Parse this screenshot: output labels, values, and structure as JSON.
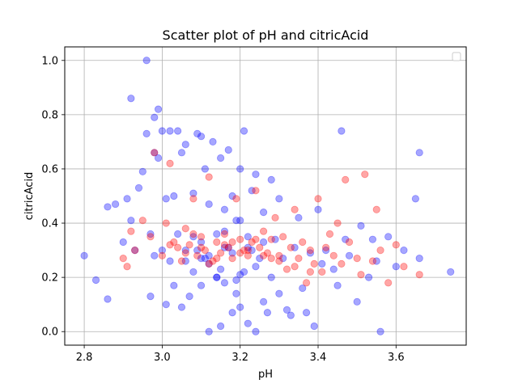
{
  "chart_data": {
    "type": "scatter",
    "title": "Scatter plot of pH and citricAcid",
    "xlabel": "pH",
    "ylabel": "citricAcid",
    "xlim": [
      2.75,
      3.78
    ],
    "ylim": [
      -0.05,
      1.05
    ],
    "x_ticks": [
      2.8,
      3.0,
      3.2,
      3.4,
      3.6
    ],
    "x_tick_labels": [
      "2.8",
      "3.0",
      "3.2",
      "3.4",
      "3.6"
    ],
    "y_ticks": [
      0.0,
      0.2,
      0.4,
      0.6,
      0.8,
      1.0
    ],
    "y_tick_labels": [
      "0.0",
      "0.2",
      "0.4",
      "0.6",
      "0.8",
      "1.0"
    ],
    "grid": true,
    "legend": {
      "placement": "top-right",
      "entries": []
    },
    "colors": {
      "series_a": "#0000ff",
      "series_b": "#ff0000"
    },
    "series": [
      {
        "color": "#0000ff",
        "alpha": 0.35,
        "x": [
          2.8,
          2.83,
          2.86,
          2.86,
          2.88,
          2.9,
          2.91,
          2.92,
          2.92,
          2.93,
          2.94,
          2.95,
          2.96,
          2.96,
          2.97,
          2.97,
          2.98,
          2.98,
          2.98,
          2.99,
          2.99,
          3.0,
          3.0,
          3.01,
          3.01,
          3.02,
          3.03,
          3.03,
          3.04,
          3.05,
          3.05,
          3.06,
          3.06,
          3.07,
          3.08,
          3.08,
          3.09,
          3.09,
          3.1,
          3.1,
          3.11,
          3.11,
          3.12,
          3.12,
          3.13,
          3.14,
          3.14,
          3.15,
          3.15,
          3.16,
          3.16,
          3.17,
          3.17,
          3.18,
          3.18,
          3.19,
          3.19,
          3.2,
          3.2,
          3.21,
          3.21,
          3.22,
          3.22,
          3.23,
          3.24,
          3.24,
          3.25,
          3.26,
          3.26,
          3.27,
          3.28,
          3.28,
          3.29,
          3.3,
          3.3,
          3.31,
          3.32,
          3.33,
          3.34,
          3.35,
          3.36,
          3.37,
          3.38,
          3.39,
          3.4,
          3.41,
          3.42,
          3.44,
          3.45,
          3.46,
          3.47,
          3.48,
          3.5,
          3.51,
          3.53,
          3.54,
          3.55,
          3.56,
          3.58,
          3.6,
          3.62,
          3.65,
          3.66,
          3.66,
          3.74,
          3.02,
          3.06,
          3.1,
          3.12,
          3.14,
          3.16,
          3.18,
          3.2,
          3.22,
          3.24,
          3.26,
          3.08,
          3.12,
          3.16,
          3.2,
          3.04,
          3.1,
          3.15,
          3.19,
          3.23
        ],
        "y": [
          0.28,
          0.19,
          0.12,
          0.46,
          0.47,
          0.33,
          0.49,
          0.86,
          0.41,
          0.3,
          0.53,
          0.59,
          1.0,
          0.73,
          0.13,
          0.36,
          0.66,
          0.79,
          0.28,
          0.82,
          0.64,
          0.74,
          0.3,
          0.1,
          0.49,
          0.74,
          0.17,
          0.5,
          0.74,
          0.09,
          0.66,
          0.69,
          0.26,
          0.13,
          0.51,
          0.35,
          0.73,
          0.3,
          0.72,
          0.17,
          0.6,
          0.27,
          0.0,
          0.47,
          0.7,
          0.2,
          0.36,
          0.02,
          0.64,
          0.45,
          0.18,
          0.67,
          0.31,
          0.07,
          0.5,
          0.14,
          0.41,
          0.09,
          0.6,
          0.74,
          0.22,
          0.03,
          0.35,
          0.52,
          0.0,
          0.58,
          0.27,
          0.11,
          0.44,
          0.07,
          0.56,
          0.2,
          0.34,
          0.49,
          0.14,
          0.27,
          0.08,
          0.06,
          0.31,
          0.42,
          0.16,
          0.07,
          0.29,
          0.02,
          0.45,
          0.25,
          0.3,
          0.23,
          0.17,
          0.74,
          0.34,
          0.28,
          0.11,
          0.39,
          0.2,
          0.34,
          0.26,
          0.0,
          0.35,
          0.24,
          0.3,
          0.49,
          0.66,
          0.27,
          0.22,
          0.26,
          0.3,
          0.33,
          0.25,
          0.2,
          0.37,
          0.29,
          0.41,
          0.31,
          0.24,
          0.33,
          0.22,
          0.28,
          0.31,
          0.21,
          0.36,
          0.27,
          0.23,
          0.19,
          0.3
        ]
      },
      {
        "color": "#ff0000",
        "alpha": 0.35,
        "x": [
          2.9,
          2.91,
          2.92,
          2.93,
          2.95,
          2.97,
          2.98,
          3.0,
          3.01,
          3.02,
          3.03,
          3.04,
          3.05,
          3.06,
          3.07,
          3.08,
          3.09,
          3.1,
          3.11,
          3.12,
          3.13,
          3.14,
          3.15,
          3.16,
          3.17,
          3.18,
          3.19,
          3.2,
          3.21,
          3.22,
          3.23,
          3.24,
          3.25,
          3.26,
          3.27,
          3.28,
          3.29,
          3.3,
          3.31,
          3.32,
          3.33,
          3.34,
          3.35,
          3.36,
          3.37,
          3.38,
          3.39,
          3.4,
          3.41,
          3.42,
          3.43,
          3.44,
          3.45,
          3.46,
          3.47,
          3.48,
          3.5,
          3.51,
          3.52,
          3.54,
          3.55,
          3.56,
          3.58,
          3.6,
          3.62,
          3.66,
          3.02,
          3.06,
          3.1,
          3.14,
          3.18,
          3.22,
          3.26,
          3.3,
          3.34,
          3.38,
          3.08,
          3.12,
          3.16,
          3.2,
          3.24,
          3.28
        ],
        "y": [
          0.27,
          0.24,
          0.37,
          0.3,
          0.41,
          0.35,
          0.66,
          0.28,
          0.4,
          0.62,
          0.33,
          0.31,
          0.26,
          0.38,
          0.32,
          0.49,
          0.28,
          0.35,
          0.3,
          0.57,
          0.26,
          0.33,
          0.29,
          0.36,
          0.31,
          0.27,
          0.49,
          0.34,
          0.3,
          0.28,
          0.33,
          0.52,
          0.31,
          0.37,
          0.29,
          0.34,
          0.42,
          0.28,
          0.35,
          0.23,
          0.31,
          0.45,
          0.27,
          0.33,
          0.18,
          0.3,
          0.25,
          0.49,
          0.22,
          0.31,
          0.36,
          0.28,
          0.4,
          0.25,
          0.56,
          0.33,
          0.27,
          0.21,
          0.58,
          0.26,
          0.45,
          0.3,
          0.18,
          0.32,
          0.24,
          0.21,
          0.32,
          0.29,
          0.31,
          0.27,
          0.33,
          0.3,
          0.28,
          0.26,
          0.24,
          0.22,
          0.36,
          0.25,
          0.32,
          0.29,
          0.34,
          0.27
        ]
      }
    ]
  }
}
